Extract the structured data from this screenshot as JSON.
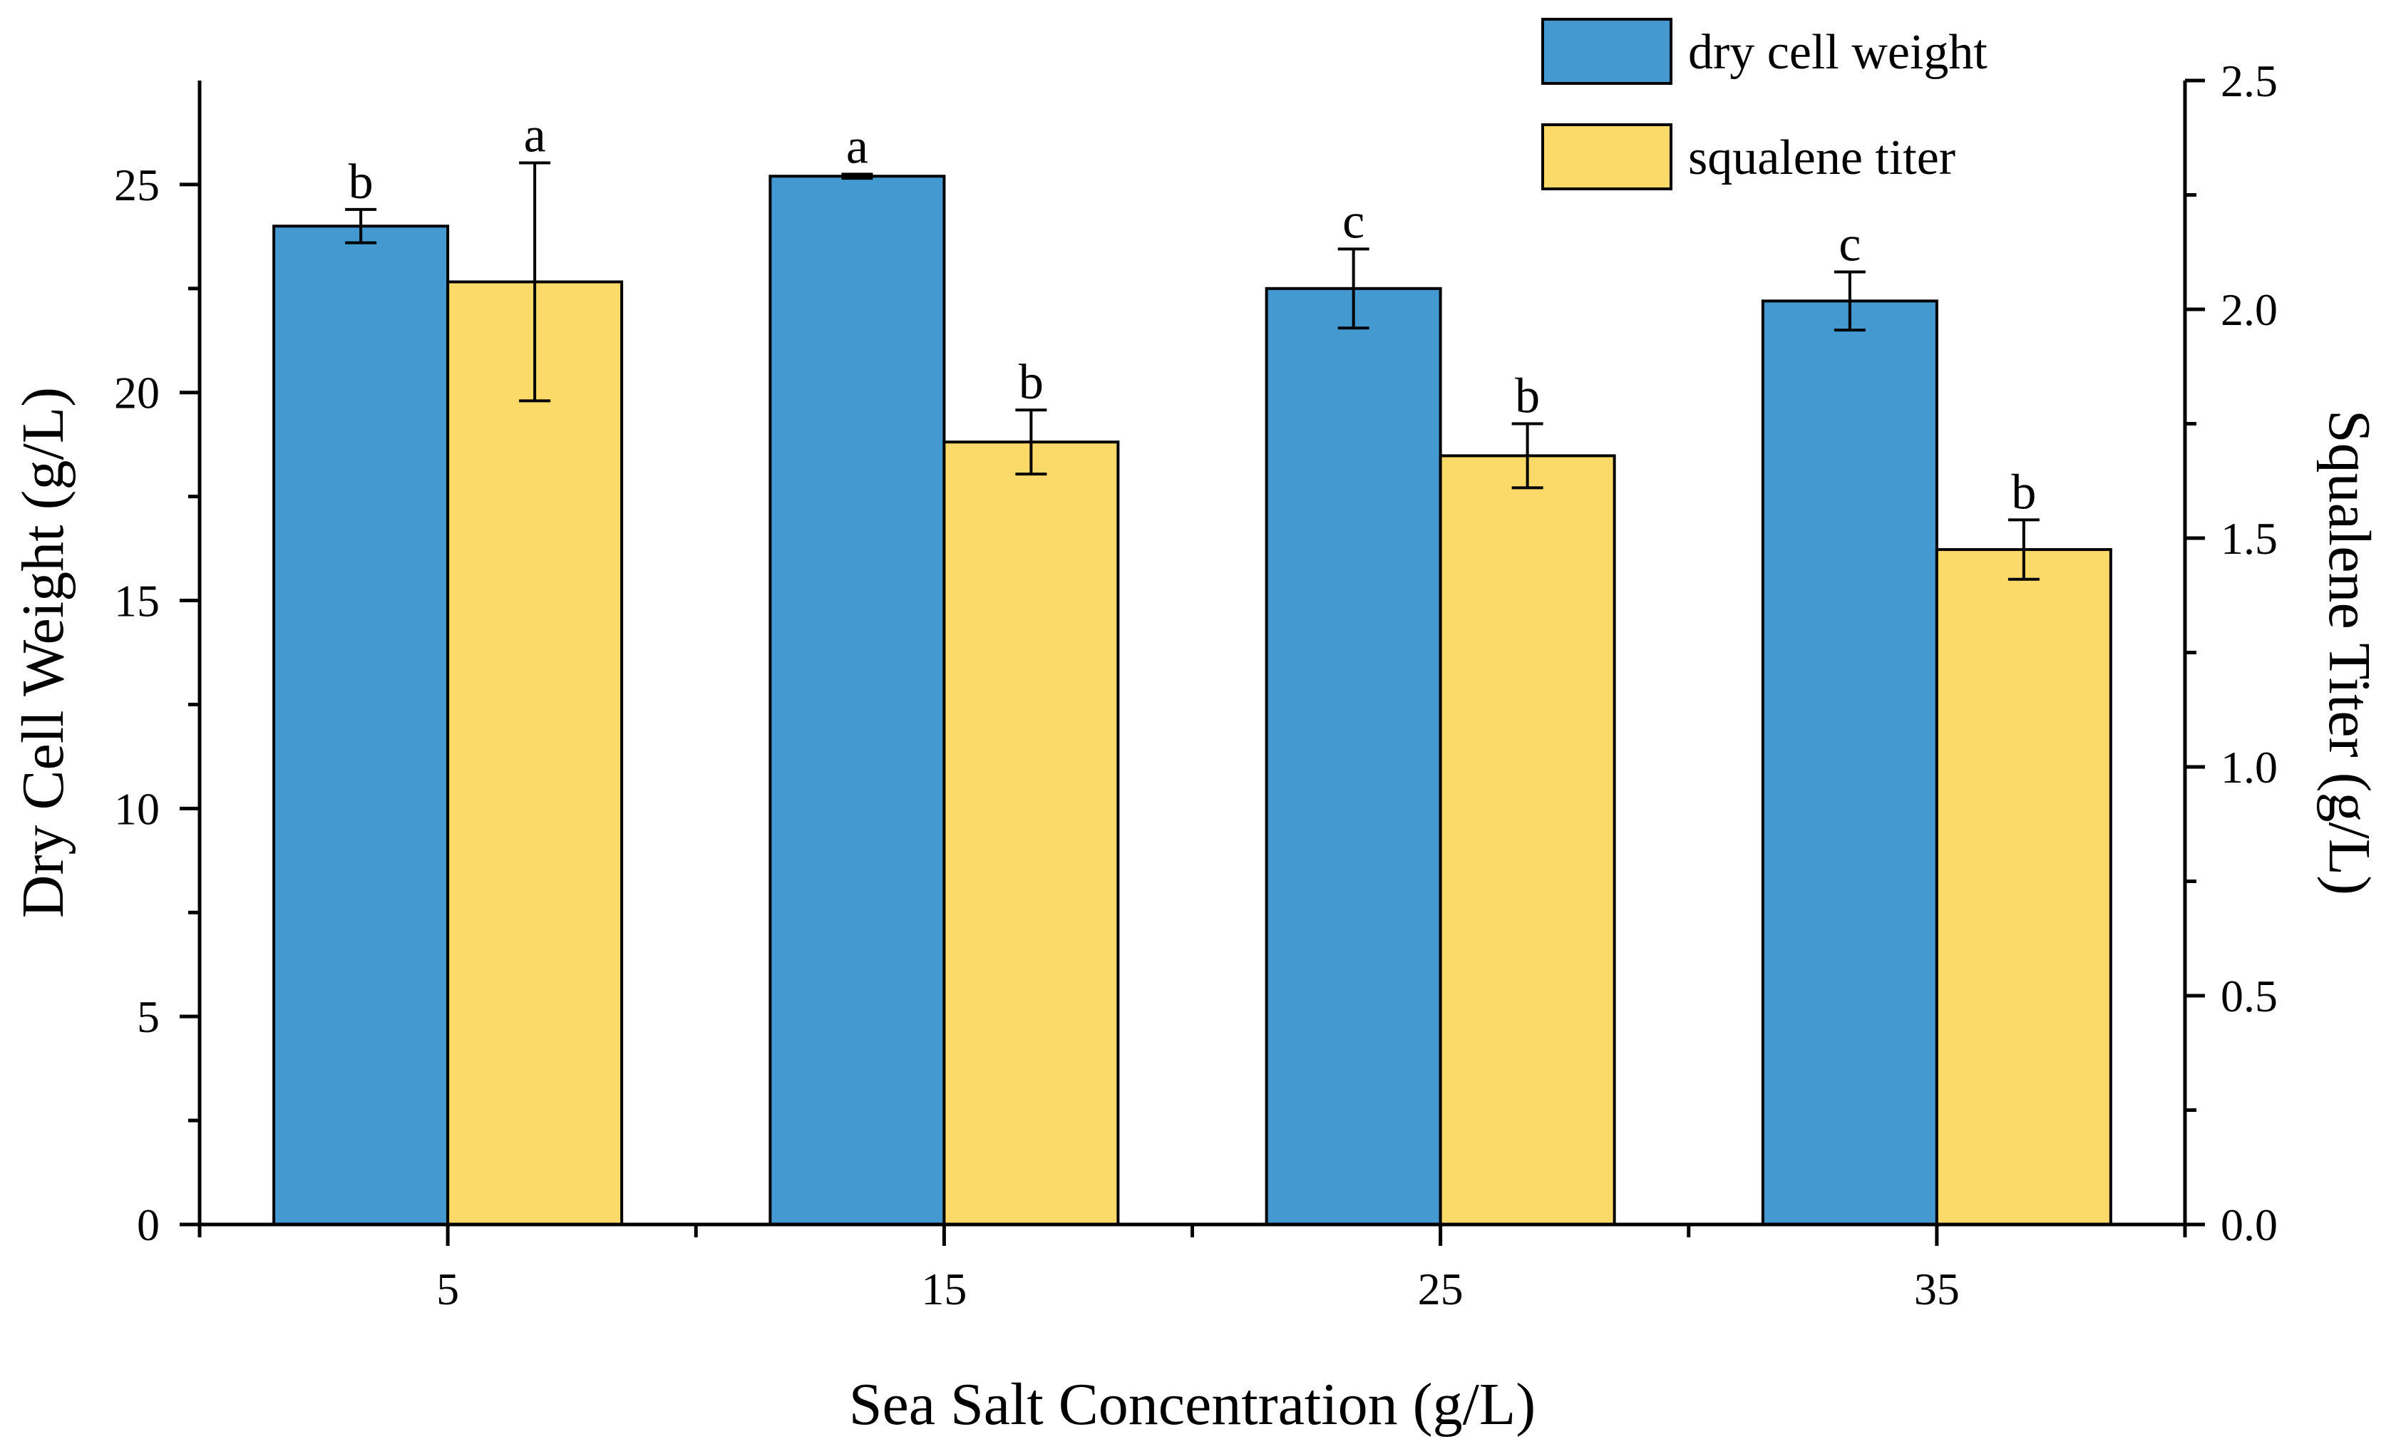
{
  "chart_data": {
    "type": "bar",
    "title": "",
    "xlabel": "Sea Salt Concentration (g/L)",
    "ylabel": "Dry Cell Weight (g/L)",
    "y2label": "Squalene Titer (g/L)",
    "categories": [
      "5",
      "15",
      "25",
      "35"
    ],
    "ylim": [
      0,
      27.5
    ],
    "y2lim": [
      0,
      2.5
    ],
    "yticks": [
      0,
      5,
      10,
      15,
      20,
      25
    ],
    "y2ticks": [
      "0.0",
      "0.5",
      "1.0",
      "1.5",
      "2.0",
      "2.5"
    ],
    "legend_position": "top-right",
    "series": [
      {
        "name": "dry cell weight",
        "axis": "left",
        "color": "#4499D0",
        "values": [
          24.0,
          25.2,
          22.5,
          22.2
        ],
        "errors": [
          0.4,
          0.05,
          0.95,
          0.7
        ],
        "labels": [
          "b",
          "a",
          "c",
          "c"
        ]
      },
      {
        "name": "squalene titer",
        "axis": "right",
        "color": "#FCDA6A",
        "values": [
          2.06,
          1.71,
          1.68,
          1.475
        ],
        "errors": [
          0.26,
          0.07,
          0.07,
          0.065
        ],
        "labels": [
          "a",
          "b",
          "b",
          "b"
        ]
      }
    ]
  }
}
